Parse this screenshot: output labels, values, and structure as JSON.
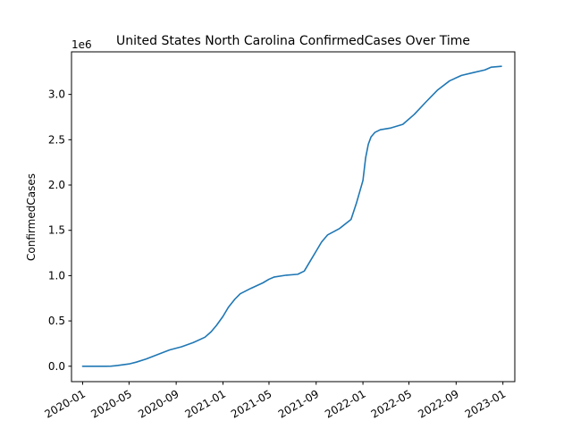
{
  "chart_data": {
    "type": "line",
    "title": "United States North Carolina ConfirmedCases Over Time",
    "xlabel": "",
    "ylabel": "ConfirmedCases",
    "y_offset_text": "1e6",
    "grid": false,
    "legend": "none",
    "xlim": [
      "2019-12-03",
      "2023-02-01"
    ],
    "ylim": [
      -0.17,
      3.47
    ],
    "y_unit_multiplier": 1000000,
    "x_ticks": [
      "2020-01",
      "2020-05",
      "2020-09",
      "2021-01",
      "2021-05",
      "2021-09",
      "2022-01",
      "2022-05",
      "2022-09",
      "2023-01"
    ],
    "y_ticks": [
      "0.0",
      "0.5",
      "1.0",
      "1.5",
      "2.0",
      "2.5",
      "3.0"
    ],
    "series": [
      {
        "color": "#1f77b4",
        "x": [
          "2020-01-01",
          "2020-02-01",
          "2020-03-01",
          "2020-03-15",
          "2020-04-01",
          "2020-05-01",
          "2020-05-20",
          "2020-06-15",
          "2020-07-15",
          "2020-08-15",
          "2020-09-15",
          "2020-10-15",
          "2020-11-15",
          "2020-12-01",
          "2020-12-15",
          "2021-01-01",
          "2021-01-15",
          "2021-02-01",
          "2021-02-15",
          "2021-03-15",
          "2021-04-15",
          "2021-05-01",
          "2021-05-15",
          "2021-06-15",
          "2021-07-15",
          "2021-08-01",
          "2021-08-15",
          "2021-09-01",
          "2021-09-15",
          "2021-10-01",
          "2021-11-01",
          "2021-12-01",
          "2021-12-15",
          "2022-01-01",
          "2022-01-08",
          "2022-01-15",
          "2022-01-22",
          "2022-02-01",
          "2022-02-15",
          "2022-03-15",
          "2022-04-15",
          "2022-05-15",
          "2022-06-15",
          "2022-07-15",
          "2022-08-15",
          "2022-09-15",
          "2022-10-15",
          "2022-11-15",
          "2022-12-01",
          "2022-12-28"
        ],
        "values": [
          0,
          0,
          0,
          0.001,
          0.008,
          0.025,
          0.045,
          0.08,
          0.13,
          0.18,
          0.215,
          0.26,
          0.32,
          0.38,
          0.45,
          0.55,
          0.65,
          0.74,
          0.8,
          0.86,
          0.92,
          0.96,
          0.985,
          1.005,
          1.015,
          1.05,
          1.15,
          1.27,
          1.37,
          1.45,
          1.52,
          1.62,
          1.8,
          2.05,
          2.3,
          2.45,
          2.53,
          2.58,
          2.61,
          2.63,
          2.67,
          2.78,
          2.92,
          3.05,
          3.15,
          3.21,
          3.24,
          3.27,
          3.3,
          3.31
        ]
      }
    ]
  }
}
